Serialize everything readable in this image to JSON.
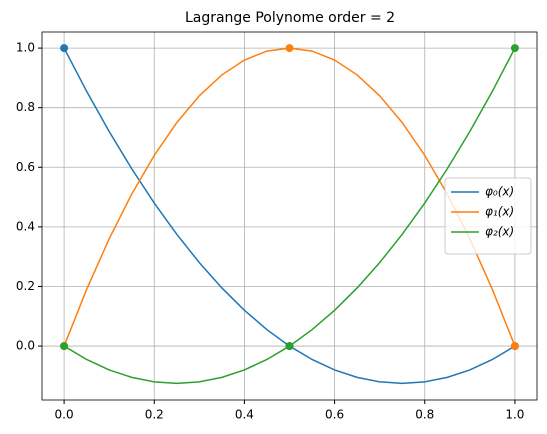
{
  "chart_data": {
    "type": "line",
    "title": "Lagrange Polynome order = 2",
    "x": [
      0,
      0.05,
      0.1,
      0.15,
      0.2,
      0.25,
      0.3,
      0.35,
      0.4,
      0.45,
      0.5,
      0.55,
      0.6,
      0.65,
      0.7,
      0.75,
      0.8,
      0.85,
      0.9,
      0.95,
      1
    ],
    "marker_x": [
      0,
      0.5,
      1
    ],
    "series": [
      {
        "name": "φ₀(x)",
        "color": "#1f77b4",
        "values": [
          1,
          0.855,
          0.72,
          0.595,
          0.48,
          0.375,
          0.28,
          0.195,
          0.12,
          0.055,
          0,
          -0.045,
          -0.08,
          -0.105,
          -0.12,
          -0.125,
          -0.12,
          -0.105,
          -0.08,
          -0.045,
          0
        ],
        "marker_values": [
          1,
          0,
          0
        ]
      },
      {
        "name": "φ₁(x)",
        "color": "#ff7f0e",
        "values": [
          0,
          0.19,
          0.36,
          0.51,
          0.64,
          0.75,
          0.84,
          0.91,
          0.96,
          0.99,
          1,
          0.99,
          0.96,
          0.91,
          0.84,
          0.75,
          0.64,
          0.51,
          0.36,
          0.19,
          0
        ],
        "marker_values": [
          0,
          1,
          0
        ]
      },
      {
        "name": "φ₂(x)",
        "color": "#2ca02c",
        "values": [
          0,
          -0.045,
          -0.08,
          -0.105,
          -0.12,
          -0.125,
          -0.12,
          -0.105,
          -0.08,
          -0.045,
          0,
          0.055,
          0.12,
          0.195,
          0.28,
          0.375,
          0.48,
          0.595,
          0.72,
          0.855,
          1
        ],
        "marker_values": [
          0,
          0,
          1
        ]
      }
    ],
    "xlim": [
      -0.049,
      1.049
    ],
    "ylim": [
      -0.181,
      1.054
    ],
    "xticks": [
      {
        "value": 0,
        "label": "0.0"
      },
      {
        "value": 0.2,
        "label": "0.2"
      },
      {
        "value": 0.4,
        "label": "0.4"
      },
      {
        "value": 0.6,
        "label": "0.6"
      },
      {
        "value": 0.8,
        "label": "0.8"
      },
      {
        "value": 1,
        "label": "1.0"
      }
    ],
    "yticks": [
      {
        "value": 0,
        "label": "0.0"
      },
      {
        "value": 0.2,
        "label": "0.2"
      },
      {
        "value": 0.4,
        "label": "0.4"
      },
      {
        "value": 0.6,
        "label": "0.6"
      },
      {
        "value": 0.8,
        "label": "0.8"
      },
      {
        "value": 1,
        "label": "1.0"
      }
    ],
    "grid": true,
    "legend": "center right"
  }
}
